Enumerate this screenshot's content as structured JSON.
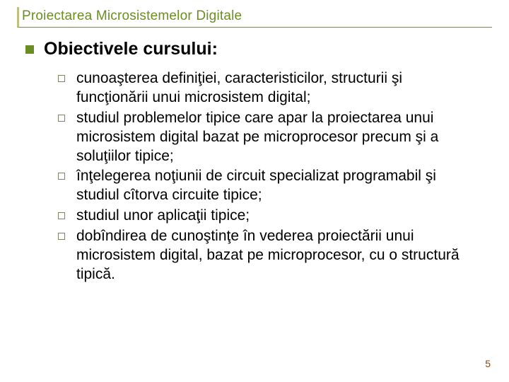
{
  "colors": {
    "title_color": "#6b8e23",
    "section_bullet_color": "#6b8e23",
    "item_bullet_border": "#808066",
    "text_color": "#000000",
    "page_number_color": "#8b4513",
    "divider_color": "#808066",
    "accent_border": "#c0c080",
    "background": "#ffffff"
  },
  "typography": {
    "title_fontsize": 19,
    "section_title_fontsize": 25,
    "item_text_fontsize": 21,
    "page_number_fontsize": 14,
    "font_family": "Arial"
  },
  "title": "Proiectarea Microsistemelor Digitale",
  "section_title": "Obiectivele cursului:",
  "objectives": [
    "cunoaşterea definiţiei, caracteristicilor, structurii şi funcţionării unui microsistem digital;",
    "studiul problemelor tipice care apar la proiectarea unui microsistem digital bazat pe microprocesor precum şi a soluţiilor tipice;",
    "înţelegerea noţiunii de circuit specializat programabil şi studiul cîtorva circuite tipice;",
    "studiul unor aplicaţii tipice;",
    "dobîndirea de cunoştinţe în vederea proiectării unui microsistem digital, bazat pe microprocesor, cu o structură tipică."
  ],
  "page_number": "5"
}
